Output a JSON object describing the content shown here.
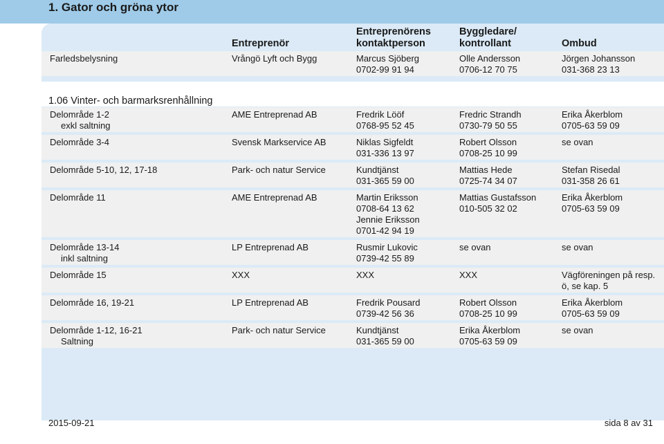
{
  "title": "1. Gator och gröna ytor",
  "headers": {
    "entreprenor": "Entreprenör",
    "kontakt": [
      "Entreprenörens",
      "kontaktperson"
    ],
    "byggledare": [
      "Byggledare/",
      "kontrollant"
    ],
    "ombud": "Ombud"
  },
  "top_row": {
    "area": "Farledsbelysning",
    "entreprenor": "Vrångö Lyft och Bygg",
    "kontakt": [
      "Marcus Sjöberg",
      "0702-99 91 94"
    ],
    "byggledare": [
      "Olle Andersson",
      "0706-12 70 75"
    ],
    "ombud": [
      "Jörgen Johansson",
      "031-368 23 13"
    ]
  },
  "section_title": "1.06 Vinter- och barmarksrenhållning",
  "rows": [
    {
      "area": [
        "Delområde 1-2",
        "exkl saltning"
      ],
      "entreprenor": "AME Entreprenad AB",
      "kontakt": [
        "Fredrik Lööf",
        "0768-95 52 45"
      ],
      "byggledare": [
        "Fredric Strandh",
        "0730-79 50 55"
      ],
      "ombud": [
        "Erika Åkerblom",
        "0705-63 59 09"
      ]
    },
    {
      "area": [
        "Delområde 3-4"
      ],
      "entreprenor": "Svensk Markservice AB",
      "kontakt": [
        "Niklas Sigfeldt",
        "031-336 13 97"
      ],
      "byggledare": [
        "Robert Olsson",
        "0708-25 10 99"
      ],
      "ombud": [
        "se ovan"
      ]
    },
    {
      "area": [
        "Delområde 5-10, 12, 17-18"
      ],
      "entreprenor": "Park- och natur Service",
      "kontakt": [
        "Kundtjänst",
        "031-365 59 00"
      ],
      "byggledare": [
        "Mattias Hede",
        "0725-74 34 07"
      ],
      "ombud": [
        "Stefan Risedal",
        "031-358 26 61"
      ]
    },
    {
      "area": [
        "Delområde 11"
      ],
      "entreprenor": "AME Entreprenad AB",
      "kontakt": [
        "Martin Eriksson",
        "0708-64 13 62",
        "Jennie Eriksson",
        "0701-42 94 19"
      ],
      "byggledare": [
        "Mattias Gustafsson",
        "010-505 32 02"
      ],
      "ombud": [
        "Erika Åkerblom",
        "0705-63 59 09"
      ]
    },
    {
      "area": [
        "Delområde 13-14",
        "inkl saltning"
      ],
      "entreprenor": "LP Entreprenad AB",
      "kontakt": [
        "Rusmir Lukovic",
        "0739-42 55 89"
      ],
      "byggledare": [
        "se ovan"
      ],
      "ombud": [
        "se ovan"
      ]
    },
    {
      "area": [
        "Delområde 15"
      ],
      "entreprenor": "XXX",
      "kontakt": [
        "XXX"
      ],
      "byggledare": [
        "XXX"
      ],
      "ombud": [
        "Vägföreningen på resp.",
        "ö, se kap. 5"
      ]
    },
    {
      "area": [
        "Delområde 16, 19-21"
      ],
      "entreprenor": "LP Entreprenad AB",
      "kontakt": [
        "Fredrik Pousard",
        "0739-42 56 36"
      ],
      "byggledare": [
        "Robert Olsson",
        "0708-25 10 99"
      ],
      "ombud": [
        "Erika Åkerblom",
        "0705-63 59 09"
      ]
    },
    {
      "area": [
        "Delområde 1-12, 16-21",
        "Saltning"
      ],
      "entreprenor": "Park- och natur Service",
      "kontakt": [
        "Kundtjänst",
        "031-365 59 00"
      ],
      "byggledare": [
        "Erika Åkerblom",
        "0705-63 59 09"
      ],
      "ombud": [
        "se ovan"
      ]
    }
  ],
  "footer": {
    "date": "2015-09-21",
    "page": "sida 8 av 31"
  },
  "colors": {
    "title_bar": "#9fcbe8",
    "panel": "#dbeaf6",
    "row_band": "#f0f0f0"
  }
}
